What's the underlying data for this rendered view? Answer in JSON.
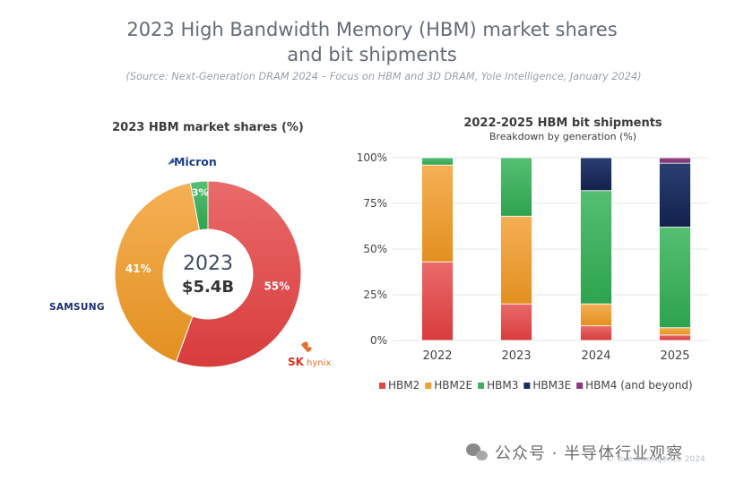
{
  "title_line1": "2023 High Bandwidth Memory (HBM) market shares",
  "title_line2": "and bit shipments",
  "source": "(Source: Next-Generation DRAM 2024 – Focus on HBM and 3D DRAM, Yole Intelligence, January 2024)",
  "watermark": "公众号 · 半导体行业观察",
  "copyright": "© Yole Intelligence 2024",
  "chart_data": [
    {
      "type": "pie",
      "title": "2023 HBM market shares (%)",
      "center_label_year": "2023",
      "center_label_value": "$5.4B",
      "slices": [
        {
          "label": "SK hynix",
          "value": 55,
          "value_label": "55%",
          "color": "#e04848"
        },
        {
          "label": "Samsung",
          "value": 41,
          "value_label": "41%",
          "color": "#f0a030"
        },
        {
          "label": "Micron",
          "value": 3,
          "value_label": "3%",
          "color": "#3db05c"
        }
      ],
      "company_labels": {
        "micron": "Micron",
        "samsung": "SAMSUNG",
        "skhynix_sk": "SK",
        "skhynix_hynix": "hynix"
      }
    },
    {
      "type": "bar",
      "stacked": true,
      "title": "2022-2025 HBM bit shipments",
      "subtitle": "Breakdown by generation (%)",
      "categories": [
        "2022",
        "2023",
        "2024",
        "2025"
      ],
      "y_ticks": [
        "0%",
        "25%",
        "50%",
        "75%",
        "100%"
      ],
      "ylim": [
        0,
        100
      ],
      "legend_placement": "bottom",
      "series": [
        {
          "name": "HBM2",
          "color": "#e04848",
          "values": [
            43,
            20,
            8,
            3
          ]
        },
        {
          "name": "HBM2E",
          "color": "#f0a030",
          "values": [
            53,
            48,
            12,
            4
          ]
        },
        {
          "name": "HBM3",
          "color": "#3db05c",
          "values": [
            4,
            32,
            62,
            55
          ]
        },
        {
          "name": "HBM3E",
          "color": "#1a2d5e",
          "values": [
            0,
            0,
            18,
            35
          ]
        },
        {
          "name": "HBM4 (and beyond)",
          "color": "#8a3a7c",
          "values": [
            0,
            0,
            0,
            3
          ]
        }
      ]
    }
  ]
}
